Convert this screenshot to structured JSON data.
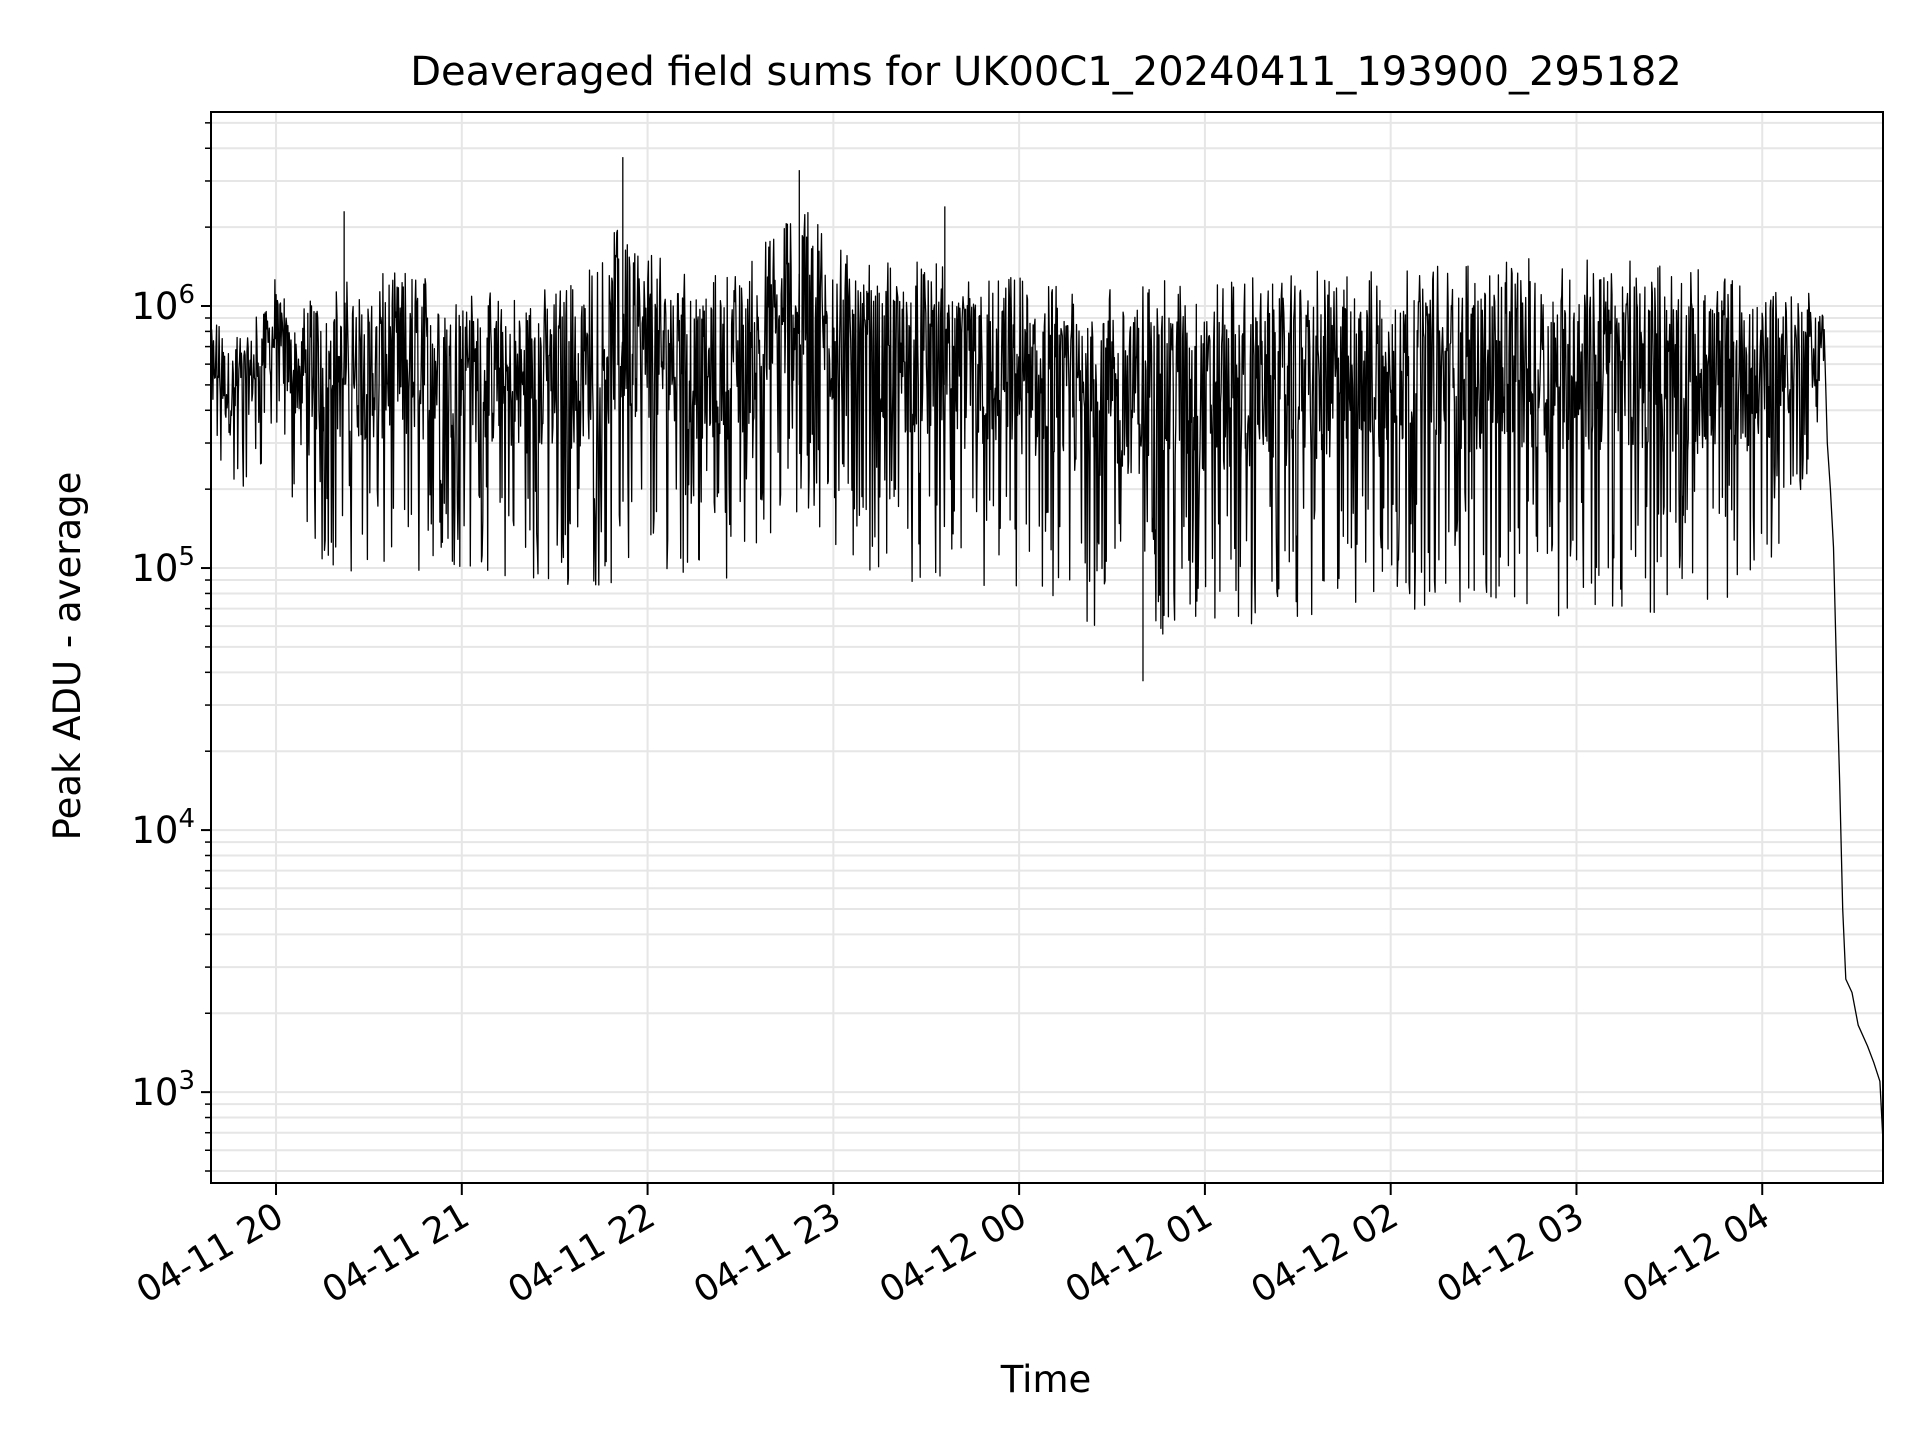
{
  "chart_data": {
    "type": "line",
    "title": "Deaveraged field sums for UK00C1_20240411_193900_295182",
    "xlabel": "Time",
    "ylabel": "Peak ADU - average",
    "yscale": "log",
    "grid": true,
    "x_range": [
      "2024-04-11 19:39",
      "2024-04-12 04:39"
    ],
    "ylim": [
      450,
      5500000
    ],
    "x_ticks": [
      {
        "label": "04-11 20",
        "time": "2024-04-11 20:00"
      },
      {
        "label": "04-11 21",
        "time": "2024-04-11 21:00"
      },
      {
        "label": "04-11 22",
        "time": "2024-04-11 22:00"
      },
      {
        "label": "04-11 23",
        "time": "2024-04-11 23:00"
      },
      {
        "label": "04-12 00",
        "time": "2024-04-12 00:00"
      },
      {
        "label": "04-12 01",
        "time": "2024-04-12 01:00"
      },
      {
        "label": "04-12 02",
        "time": "2024-04-12 02:00"
      },
      {
        "label": "04-12 03",
        "time": "2024-04-12 03:00"
      },
      {
        "label": "04-12 04",
        "time": "2024-04-12 04:00"
      }
    ],
    "y_ticks": [
      {
        "base": "10",
        "exp": "3",
        "value": 1000
      },
      {
        "base": "10",
        "exp": "4",
        "value": 10000
      },
      {
        "base": "10",
        "exp": "5",
        "value": 100000
      },
      {
        "base": "10",
        "exp": "6",
        "value": 1000000
      }
    ],
    "series": [
      {
        "color": "#000000",
        "envelope": {
          "x": [
            "2024-04-11 19:39",
            "2024-04-11 19:45",
            "2024-04-11 19:52",
            "2024-04-11 20:00",
            "2024-04-11 20:05",
            "2024-04-11 20:15",
            "2024-04-11 20:30",
            "2024-04-11 20:45",
            "2024-04-11 21:00",
            "2024-04-11 21:15",
            "2024-04-11 21:30",
            "2024-04-11 21:45",
            "2024-04-11 21:52",
            "2024-04-11 22:00",
            "2024-04-11 22:15",
            "2024-04-11 22:30",
            "2024-04-11 22:45",
            "2024-04-11 22:52",
            "2024-04-11 23:00",
            "2024-04-11 23:15",
            "2024-04-11 23:30",
            "2024-04-11 23:45",
            "2024-04-12 00:00",
            "2024-04-12 00:15",
            "2024-04-12 00:30",
            "2024-04-12 00:45",
            "2024-04-12 01:00",
            "2024-04-12 01:30",
            "2024-04-12 02:00",
            "2024-04-12 02:30",
            "2024-04-12 03:00",
            "2024-04-12 03:30",
            "2024-04-12 04:00",
            "2024-04-12 04:20"
          ],
          "upper": [
            900000,
            800000,
            900000,
            1300000,
            1000000,
            1200000,
            1300000,
            1400000,
            1200000,
            1100000,
            1200000,
            1500000,
            2500000,
            1800000,
            1300000,
            1400000,
            2200000,
            2700000,
            1800000,
            1500000,
            1500000,
            1300000,
            1300000,
            1200000,
            1200000,
            1250000,
            1250000,
            1350000,
            1400000,
            1500000,
            1550000,
            1450000,
            1300000,
            1100000
          ],
          "lower": [
            350000,
            150000,
            200000,
            300000,
            180000,
            100000,
            95000,
            85000,
            100000,
            90000,
            80000,
            85000,
            85000,
            100000,
            95000,
            90000,
            150000,
            140000,
            110000,
            95000,
            85000,
            80000,
            75000,
            55000,
            58000,
            55000,
            55000,
            62000,
            70000,
            68000,
            65000,
            68000,
            80000,
            300000
          ]
        },
        "tail": {
          "x": [
            "2024-04-12 04:20",
            "2024-04-12 04:21",
            "2024-04-12 04:22",
            "2024-04-12 04:23",
            "2024-04-12 04:24",
            "2024-04-12 04:25",
            "2024-04-12 04:26",
            "2024-04-12 04:27",
            "2024-04-12 04:29",
            "2024-04-12 04:31",
            "2024-04-12 04:34",
            "2024-04-12 04:36",
            "2024-04-12 04:38",
            "2024-04-12 04:39"
          ],
          "y": [
            800000,
            300000,
            200000,
            120000,
            40000,
            15000,
            5000,
            2700,
            2400,
            1800,
            1500,
            1300,
            1100,
            650
          ]
        },
        "spikes": [
          {
            "x": "2024-04-11 21:52",
            "y": 3700000
          },
          {
            "x": "2024-04-11 22:49",
            "y": 3300000
          },
          {
            "x": "2024-04-11 20:22",
            "y": 2300000
          },
          {
            "x": "2024-04-11 23:36",
            "y": 2400000
          },
          {
            "x": "2024-04-12 00:40",
            "y": 37000
          }
        ]
      }
    ]
  }
}
